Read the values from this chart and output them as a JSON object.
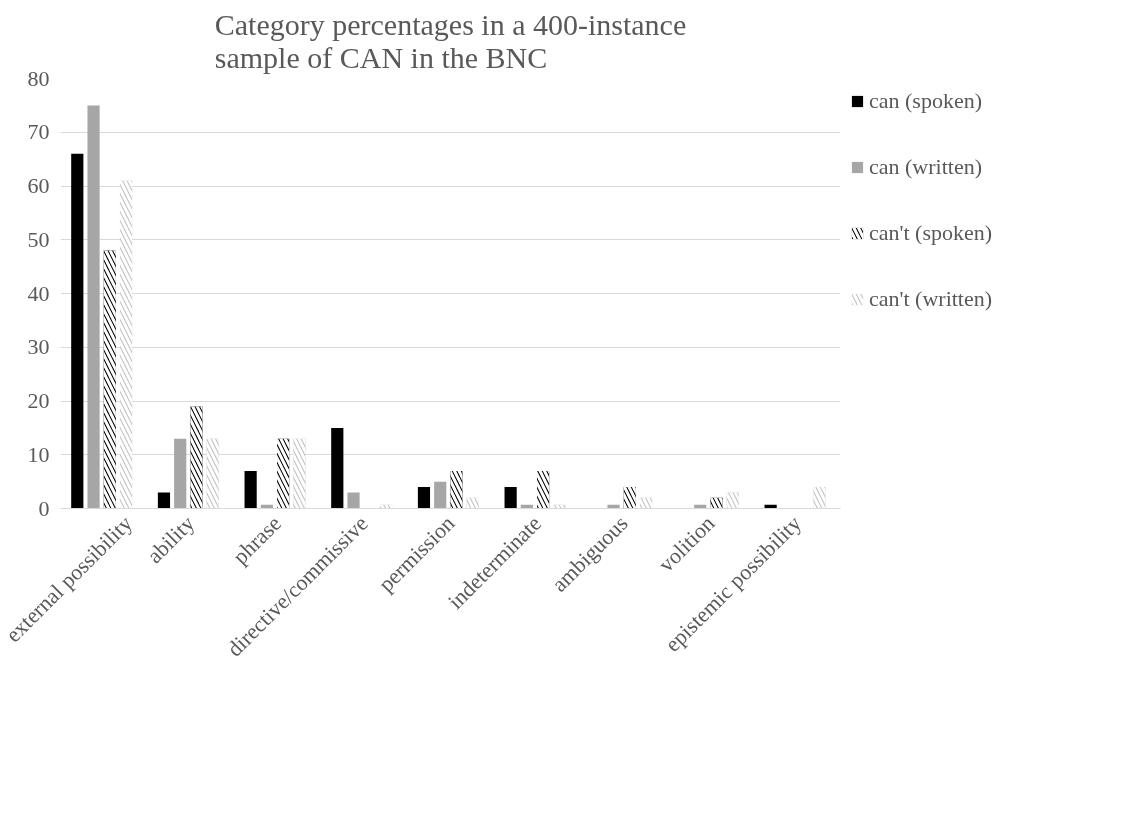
{
  "chart_data": {
    "type": "bar",
    "title": "Category percentages in a 400-instance\nsample of CAN in the BNC",
    "categories": [
      "external possibility",
      "ability",
      "phrase",
      "directive/commissive",
      "permission",
      "indeterminate",
      "ambiguous",
      "volition",
      "epistemic possibility"
    ],
    "series": [
      {
        "name": "can (spoken)",
        "color": "#000000",
        "values": [
          66,
          3,
          7,
          15,
          4,
          4,
          0,
          0,
          0.7
        ]
      },
      {
        "name": "can (written)",
        "color": "#a6a6a6",
        "values": [
          75,
          13,
          0.7,
          3,
          5,
          0.7,
          0.7,
          0.7,
          0
        ]
      },
      {
        "name": "can't (spoken)",
        "color": "#000000",
        "values": [
          48,
          19,
          13,
          0,
          7,
          7,
          4,
          2,
          0
        ]
      },
      {
        "name": "can't (written)",
        "color": "#c0c0c0",
        "values": [
          61,
          13,
          13,
          0.7,
          2,
          0.7,
          2,
          3,
          4
        ]
      }
    ],
    "ylim": [
      0,
      80
    ],
    "yticks": [
      0,
      10,
      20,
      30,
      40,
      50,
      60,
      70,
      80
    ],
    "grid": "y",
    "legend": "right"
  }
}
